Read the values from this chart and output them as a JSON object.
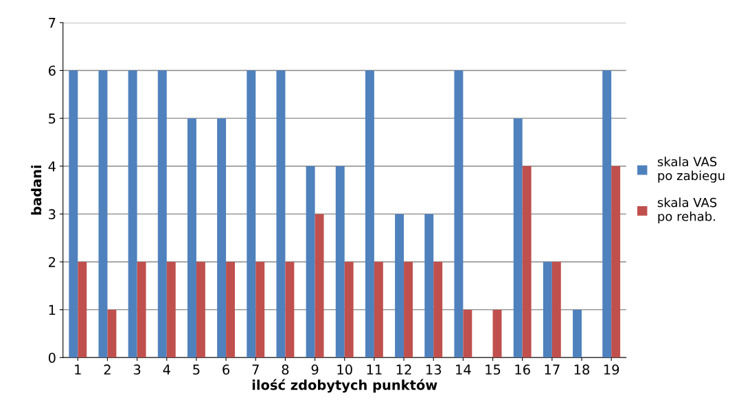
{
  "chart_data": {
    "type": "bar",
    "xlabel": "ilość zdobytych punktów",
    "ylabel": "badani",
    "categories": [
      "1",
      "2",
      "3",
      "4",
      "5",
      "6",
      "7",
      "8",
      "9",
      "10",
      "11",
      "12",
      "13",
      "14",
      "15",
      "16",
      "17",
      "18",
      "19"
    ],
    "series": [
      {
        "name": "skala VAS po zabiegu",
        "color": "#4f81bd",
        "values": [
          6,
          6,
          6,
          6,
          5,
          5,
          6,
          6,
          4,
          4,
          6,
          3,
          3,
          6,
          0,
          5,
          2,
          1,
          6
        ]
      },
      {
        "name": "skala VAS po rehab.",
        "color": "#c0504d",
        "values": [
          2,
          1,
          2,
          2,
          2,
          2,
          2,
          2,
          3,
          2,
          2,
          2,
          2,
          1,
          1,
          4,
          2,
          0,
          4
        ]
      }
    ],
    "ylim": [
      0,
      7
    ],
    "yticks": [
      0,
      1,
      2,
      3,
      4,
      5,
      6,
      7
    ],
    "grid": "y",
    "legend": "right"
  }
}
